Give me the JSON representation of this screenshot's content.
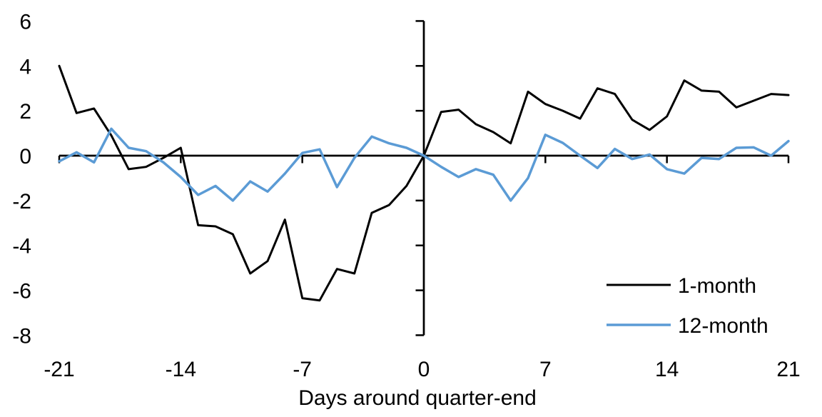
{
  "chart_data": {
    "type": "line",
    "title": "",
    "xlabel": "Days around quarter-end",
    "ylabel": "",
    "xlim": [
      -21,
      21
    ],
    "ylim": [
      -8,
      6
    ],
    "x_ticks": [
      -21,
      -14,
      -7,
      0,
      7,
      14,
      21
    ],
    "y_ticks": [
      6,
      4,
      2,
      0,
      -2,
      -4,
      -6,
      -8
    ],
    "grid": false,
    "legend_position": "bottom-right",
    "axis_color": "#000000",
    "x": [
      -21,
      -20,
      -19,
      -18,
      -17,
      -16,
      -15,
      -14,
      -13,
      -12,
      -11,
      -10,
      -9,
      -8,
      -7,
      -6,
      -5,
      -4,
      -3,
      -2,
      -1,
      0,
      1,
      2,
      3,
      4,
      5,
      6,
      7,
      8,
      9,
      10,
      11,
      12,
      13,
      14,
      15,
      16,
      17,
      18,
      19,
      20,
      21
    ],
    "series": [
      {
        "name": "1-month",
        "color": "#000000",
        "values": [
          4.0,
          1.9,
          2.1,
          0.9,
          -0.6,
          -0.5,
          -0.1,
          0.35,
          -3.1,
          -3.15,
          -3.5,
          -5.25,
          -4.7,
          -2.85,
          -6.35,
          -6.45,
          -5.05,
          -5.25,
          -2.55,
          -2.2,
          -1.35,
          0,
          1.95,
          2.05,
          1.4,
          1.05,
          0.55,
          2.85,
          2.3,
          2.0,
          1.65,
          3.0,
          2.75,
          1.6,
          1.15,
          1.75,
          3.35,
          2.9,
          2.85,
          2.15,
          2.45,
          2.75,
          2.7
        ]
      },
      {
        "name": "12-month",
        "color": "#5B9BD5",
        "values": [
          -0.25,
          0.15,
          -0.3,
          1.2,
          0.35,
          0.2,
          -0.3,
          -0.95,
          -1.75,
          -1.35,
          -2.0,
          -1.15,
          -1.6,
          -0.8,
          0.12,
          0.28,
          -1.4,
          -0.1,
          0.85,
          0.55,
          0.35,
          0,
          -0.5,
          -0.95,
          -0.6,
          -0.85,
          -2.0,
          -1.0,
          0.93,
          0.57,
          0.0,
          -0.55,
          0.3,
          -0.15,
          0.05,
          -0.6,
          -0.8,
          -0.1,
          -0.15,
          0.35,
          0.37,
          0.0,
          0.65
        ]
      }
    ]
  }
}
